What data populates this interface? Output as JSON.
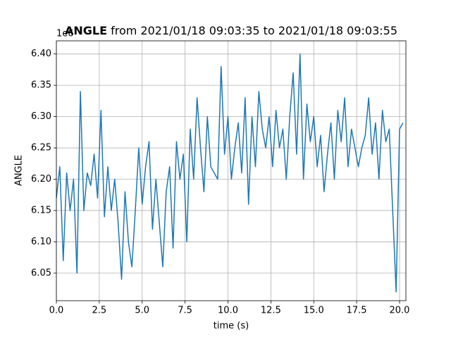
{
  "chart_data": {
    "type": "line",
    "title_bold": "ANGLE",
    "title": "from 2021/01/18 09:03:35 to 2021/01/18 09:03:55",
    "offset_label": "1e6",
    "xlabel": "time (s)",
    "ylabel": "ANGLE",
    "x": [
      0,
      0.2,
      0.4,
      0.6,
      0.8,
      1,
      1.2,
      1.4,
      1.6,
      1.8,
      2,
      2.2,
      2.4,
      2.6,
      2.8,
      3,
      3.2,
      3.4,
      3.6,
      3.8,
      4,
      4.2,
      4.4,
      4.6,
      4.8,
      5,
      5.2,
      5.4,
      5.6,
      5.8,
      6,
      6.2,
      6.4,
      6.6,
      6.8,
      7,
      7.2,
      7.4,
      7.6,
      7.8,
      8,
      8.2,
      8.4,
      8.6,
      8.8,
      9,
      9.2,
      9.4,
      9.6,
      9.8,
      10,
      10.2,
      10.4,
      10.6,
      10.8,
      11,
      11.2,
      11.4,
      11.6,
      11.8,
      12,
      12.2,
      12.4,
      12.6,
      12.8,
      13,
      13.2,
      13.4,
      13.6,
      13.8,
      14,
      14.2,
      14.4,
      14.6,
      14.8,
      15,
      15.2,
      15.4,
      15.6,
      15.8,
      16,
      16.2,
      16.4,
      16.6,
      16.8,
      17,
      17.2,
      17.4,
      17.6,
      17.8,
      18,
      18.2,
      18.4,
      18.6,
      18.8,
      19,
      19.2,
      19.4,
      19.6,
      19.8,
      20,
      20.2
    ],
    "series": [
      {
        "name": "ANGLE",
        "color": "#1f77b4",
        "values": [
          6.17,
          6.22,
          6.07,
          6.21,
          6.15,
          6.2,
          6.05,
          6.34,
          6.15,
          6.21,
          6.19,
          6.24,
          6.17,
          6.31,
          6.14,
          6.22,
          6.15,
          6.2,
          6.13,
          6.04,
          6.18,
          6.1,
          6.06,
          6.15,
          6.25,
          6.16,
          6.22,
          6.26,
          6.12,
          6.2,
          6.13,
          6.06,
          6.18,
          6.22,
          6.09,
          6.26,
          6.2,
          6.24,
          6.1,
          6.28,
          6.2,
          6.33,
          6.25,
          6.18,
          6.3,
          6.22,
          6.21,
          6.2,
          6.38,
          6.24,
          6.3,
          6.2,
          6.25,
          6.29,
          6.21,
          6.33,
          6.16,
          6.3,
          6.22,
          6.34,
          6.28,
          6.25,
          6.3,
          6.22,
          6.31,
          6.25,
          6.28,
          6.2,
          6.3,
          6.37,
          6.24,
          6.4,
          6.2,
          6.32,
          6.26,
          6.3,
          6.22,
          6.27,
          6.18,
          6.24,
          6.29,
          6.2,
          6.31,
          6.26,
          6.33,
          6.22,
          6.28,
          6.25,
          6.22,
          6.25,
          6.27,
          6.33,
          6.24,
          6.29,
          6.2,
          6.31,
          6.26,
          6.28,
          6.15,
          6.02,
          6.28,
          6.29
        ]
      }
    ],
    "xlim": [
      0,
      20.37
    ],
    "ylim": [
      6.006,
      6.421
    ],
    "xticks": [
      {
        "value": 0,
        "label": "0.0"
      },
      2.5,
      {
        "value": 5,
        "label": "5.0"
      },
      7.5,
      {
        "value": 10,
        "label": "10.0"
      },
      12.5,
      {
        "value": 15,
        "label": "15.0"
      },
      17.5,
      {
        "value": 20,
        "label": "20.0"
      }
    ],
    "yticks": [
      6.05,
      {
        "value": 6.1,
        "label": "6.10"
      },
      6.15,
      {
        "value": 6.2,
        "label": "6.20"
      },
      6.25,
      {
        "value": 6.3,
        "label": "6.30"
      },
      6.35,
      {
        "value": 6.4,
        "label": "6.40"
      }
    ],
    "grid": true
  }
}
